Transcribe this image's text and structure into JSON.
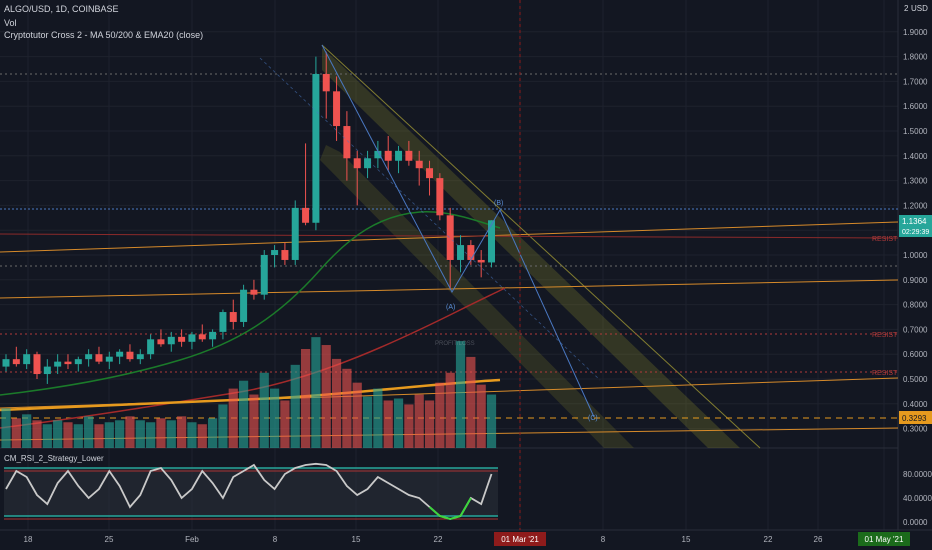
{
  "header": {
    "symbol_line": "ALGO/USD, 1D, COINBASE",
    "vol_label": "Vol",
    "indicator_line": "Cryptotutor Cross 2 - MA 50/200 & EMA20 (close)",
    "rsi_label": "CM_RSI_2_Strategy_Lower",
    "currency_label": "USD",
    "scale_badge": "2"
  },
  "price_badges": {
    "current_price": "1.1364",
    "countdown": "02:29:39",
    "target_price": "0.3293"
  },
  "annotations": {
    "resist_labels": [
      "RESIST",
      "RESIST",
      "RESIST"
    ],
    "wave_labels": [
      "(A)",
      "(B)",
      "(C)"
    ],
    "faded_text": "PROFIT/LOSS"
  },
  "colors": {
    "background": "#131722",
    "up": "#26a69a",
    "down": "#ef5350",
    "ma_green": "#1b7a2a",
    "ma_red": "#a32a2a",
    "ma_orange": "#e69a1e",
    "channel": "#8a8a2a",
    "blue_line": "#4a78c2",
    "rsi_line": "#c9c9c9",
    "rsi_band_top": "#26a69a",
    "rsi_band_bottom": "#26a69a"
  },
  "chart_data": {
    "type": "candlestick",
    "price_axis": {
      "ylim": [
        0.2,
        2.0
      ],
      "ticks": [
        "2",
        "1.9000",
        "1.8000",
        "1.7000",
        "1.6000",
        "1.5000",
        "1.4000",
        "1.3000",
        "1.2000",
        "1.1000",
        "1.0000",
        "0.9000",
        "0.8000",
        "0.7000",
        "0.6000",
        "0.5000",
        "0.4000",
        "0.3000"
      ]
    },
    "rsi_axis": {
      "ylim": [
        0,
        100
      ],
      "ticks": [
        "80.0000",
        "40.0000",
        "0.0000"
      ]
    },
    "x_axis": {
      "ticks": [
        "18",
        "25",
        "Feb",
        "8",
        "15",
        "22",
        "01 Mar '21",
        "8",
        "15",
        "22",
        "26",
        "01 May '21"
      ],
      "highlighted": [
        "01 Mar '21",
        "01 May '21"
      ]
    },
    "candles": [
      [
        0.55,
        0.6,
        0.53,
        0.58
      ],
      [
        0.58,
        0.63,
        0.55,
        0.56
      ],
      [
        0.56,
        0.62,
        0.54,
        0.6
      ],
      [
        0.6,
        0.61,
        0.5,
        0.52
      ],
      [
        0.52,
        0.58,
        0.48,
        0.55
      ],
      [
        0.55,
        0.6,
        0.52,
        0.57
      ],
      [
        0.57,
        0.6,
        0.54,
        0.56
      ],
      [
        0.56,
        0.59,
        0.53,
        0.58
      ],
      [
        0.58,
        0.62,
        0.55,
        0.6
      ],
      [
        0.6,
        0.63,
        0.56,
        0.57
      ],
      [
        0.57,
        0.61,
        0.54,
        0.59
      ],
      [
        0.59,
        0.62,
        0.56,
        0.61
      ],
      [
        0.61,
        0.64,
        0.57,
        0.58
      ],
      [
        0.58,
        0.62,
        0.56,
        0.6
      ],
      [
        0.6,
        0.68,
        0.58,
        0.66
      ],
      [
        0.66,
        0.7,
        0.63,
        0.64
      ],
      [
        0.64,
        0.69,
        0.61,
        0.67
      ],
      [
        0.67,
        0.7,
        0.63,
        0.65
      ],
      [
        0.65,
        0.69,
        0.62,
        0.68
      ],
      [
        0.68,
        0.72,
        0.65,
        0.66
      ],
      [
        0.66,
        0.7,
        0.63,
        0.69
      ],
      [
        0.69,
        0.78,
        0.66,
        0.77
      ],
      [
        0.77,
        0.82,
        0.7,
        0.73
      ],
      [
        0.73,
        0.88,
        0.71,
        0.86
      ],
      [
        0.86,
        0.9,
        0.82,
        0.84
      ],
      [
        0.84,
        1.02,
        0.82,
        1.0
      ],
      [
        1.0,
        1.04,
        0.95,
        1.02
      ],
      [
        1.02,
        1.05,
        0.96,
        0.98
      ],
      [
        0.98,
        1.22,
        0.96,
        1.19
      ],
      [
        1.19,
        1.45,
        1.12,
        1.13
      ],
      [
        1.13,
        1.8,
        1.1,
        1.73
      ],
      [
        1.73,
        1.82,
        1.55,
        1.66
      ],
      [
        1.66,
        1.72,
        1.46,
        1.52
      ],
      [
        1.52,
        1.58,
        1.3,
        1.39
      ],
      [
        1.39,
        1.42,
        1.2,
        1.35
      ],
      [
        1.35,
        1.42,
        1.31,
        1.39
      ],
      [
        1.39,
        1.46,
        1.35,
        1.42
      ],
      [
        1.42,
        1.48,
        1.34,
        1.38
      ],
      [
        1.38,
        1.44,
        1.33,
        1.42
      ],
      [
        1.42,
        1.46,
        1.36,
        1.38
      ],
      [
        1.38,
        1.42,
        1.28,
        1.35
      ],
      [
        1.35,
        1.38,
        1.24,
        1.31
      ],
      [
        1.31,
        1.33,
        1.14,
        1.16
      ],
      [
        1.16,
        1.19,
        0.86,
        0.98
      ],
      [
        0.98,
        1.08,
        0.93,
        1.04
      ],
      [
        1.04,
        1.06,
        0.96,
        0.98
      ],
      [
        0.98,
        1.02,
        0.91,
        0.97
      ],
      [
        0.97,
        1.14,
        0.95,
        1.14
      ]
    ],
    "volume": [
      0.2,
      0.15,
      0.17,
      0.14,
      0.12,
      0.14,
      0.13,
      0.12,
      0.16,
      0.12,
      0.13,
      0.14,
      0.16,
      0.14,
      0.13,
      0.15,
      0.14,
      0.16,
      0.13,
      0.12,
      0.15,
      0.22,
      0.3,
      0.34,
      0.27,
      0.38,
      0.3,
      0.24,
      0.42,
      0.5,
      0.56,
      0.52,
      0.45,
      0.4,
      0.33,
      0.26,
      0.3,
      0.24,
      0.25,
      0.22,
      0.27,
      0.24,
      0.33,
      0.38,
      0.54,
      0.46,
      0.32,
      0.27
    ],
    "rsi": [
      55,
      85,
      75,
      45,
      30,
      65,
      85,
      60,
      40,
      55,
      85,
      60,
      25,
      45,
      85,
      90,
      70,
      40,
      55,
      85,
      65,
      40,
      75,
      85,
      95,
      70,
      55,
      80,
      90,
      95,
      97,
      95,
      85,
      60,
      45,
      55,
      75,
      65,
      55,
      45,
      40,
      25,
      10,
      5,
      10,
      40,
      30,
      80
    ]
  }
}
